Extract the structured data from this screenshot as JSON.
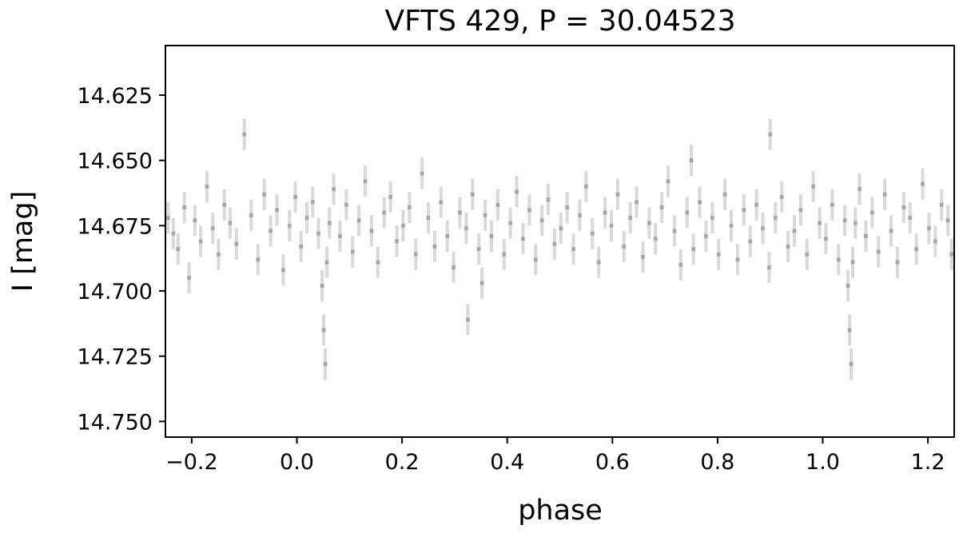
{
  "chart_data": {
    "type": "scatter",
    "title": "VFTS 429, P = 30.04523",
    "xlabel": "phase",
    "ylabel": "I [mag]",
    "xlim": [
      -0.25,
      1.25
    ],
    "ylim": [
      14.756,
      14.606
    ],
    "y_inverted": true,
    "grid": false,
    "x_ticks": [
      {
        "value": -0.2,
        "label": "−0.2"
      },
      {
        "value": 0.0,
        "label": "0.0"
      },
      {
        "value": 0.2,
        "label": "0.2"
      },
      {
        "value": 0.4,
        "label": "0.4"
      },
      {
        "value": 0.6,
        "label": "0.6"
      },
      {
        "value": 0.8,
        "label": "0.8"
      },
      {
        "value": 1.0,
        "label": "1.0"
      },
      {
        "value": 1.2,
        "label": "1.2"
      }
    ],
    "y_ticks": [
      {
        "value": 14.625,
        "label": "14.625"
      },
      {
        "value": 14.65,
        "label": "14.650"
      },
      {
        "value": 14.675,
        "label": "14.675"
      },
      {
        "value": 14.7,
        "label": "14.700"
      },
      {
        "value": 14.725,
        "label": "14.725"
      },
      {
        "value": 14.75,
        "label": "14.750"
      }
    ],
    "marker_color": "#000000",
    "marker_alpha": 0.15,
    "typical_error": 0.006,
    "series": [
      {
        "x": [
          -0.245,
          -0.235,
          -0.226,
          -0.214,
          -0.205,
          -0.194,
          -0.183,
          -0.171,
          -0.16,
          -0.149,
          -0.138,
          -0.127,
          -0.115,
          -0.1,
          -0.087,
          -0.074,
          -0.062,
          -0.05,
          -0.038,
          -0.026,
          -0.014,
          -0.003,
          0.008,
          0.019,
          0.03,
          0.041,
          0.048,
          0.051,
          0.054,
          0.057,
          0.062,
          0.07,
          0.082,
          0.094,
          0.106,
          0.118,
          0.13,
          0.142,
          0.154,
          0.166,
          0.178,
          0.19,
          0.202,
          0.214,
          0.226,
          0.238,
          0.25,
          0.262,
          0.274,
          0.286,
          0.298,
          0.31,
          0.322,
          0.325,
          0.334,
          0.346,
          0.352,
          0.358,
          0.37,
          0.382,
          0.394,
          0.406,
          0.418,
          0.43,
          0.442,
          0.454,
          0.466,
          0.478,
          0.49,
          0.502,
          0.514,
          0.526,
          0.538,
          0.55,
          0.562,
          0.574,
          0.586,
          0.598,
          0.61,
          0.622,
          0.634,
          0.646,
          0.658,
          0.67,
          0.682,
          0.694,
          0.706,
          0.718,
          0.73,
          0.742,
          0.75,
          0.754,
          0.766,
          0.778,
          0.79,
          0.802,
          0.814,
          0.826,
          0.838,
          0.85,
          0.862,
          0.874,
          0.886,
          0.898,
          0.9,
          0.91,
          0.922,
          0.934,
          0.946,
          0.958,
          0.97,
          0.982,
          0.994,
          1.006,
          1.018,
          1.03,
          1.042,
          1.048,
          1.051,
          1.054,
          1.057,
          1.062,
          1.07,
          1.082,
          1.094,
          1.106,
          1.118,
          1.13,
          1.142,
          1.154,
          1.166,
          1.178,
          1.19,
          1.202,
          1.214,
          1.226,
          1.238,
          1.245
        ],
        "y": [
          14.672,
          14.678,
          14.684,
          14.668,
          14.695,
          14.673,
          14.681,
          14.66,
          14.676,
          14.686,
          14.667,
          14.674,
          14.682,
          14.64,
          14.671,
          14.688,
          14.663,
          14.677,
          14.669,
          14.692,
          14.675,
          14.664,
          14.683,
          14.672,
          14.666,
          14.678,
          14.698,
          14.715,
          14.728,
          14.689,
          14.674,
          14.661,
          14.679,
          14.667,
          14.685,
          14.673,
          14.658,
          14.677,
          14.689,
          14.67,
          14.664,
          14.681,
          14.675,
          14.668,
          14.686,
          14.655,
          14.672,
          14.683,
          14.666,
          14.679,
          14.691,
          14.67,
          14.676,
          14.711,
          14.663,
          14.684,
          14.697,
          14.671,
          14.679,
          14.667,
          14.686,
          14.674,
          14.662,
          14.68,
          14.669,
          14.688,
          14.673,
          14.665,
          14.682,
          14.676,
          14.668,
          14.684,
          14.671,
          14.66,
          14.678,
          14.689,
          14.67,
          14.675,
          14.663,
          14.683,
          14.672,
          14.666,
          14.687,
          14.674,
          14.68,
          14.668,
          14.658,
          14.677,
          14.69,
          14.67,
          14.65,
          14.684,
          14.666,
          14.679,
          14.672,
          14.686,
          14.663,
          14.675,
          14.688,
          14.669,
          14.681,
          14.667,
          14.676,
          14.691,
          14.64,
          14.672,
          14.664,
          14.683,
          14.677,
          14.669,
          14.686,
          14.66,
          14.674,
          14.68,
          14.667,
          14.688,
          14.673,
          14.698,
          14.715,
          14.728,
          14.689,
          14.674,
          14.661,
          14.679,
          14.67,
          14.685,
          14.663,
          14.677,
          14.689,
          14.668,
          14.672,
          14.684,
          14.659,
          14.676,
          14.681,
          14.667,
          14.673,
          14.686
        ]
      }
    ]
  }
}
